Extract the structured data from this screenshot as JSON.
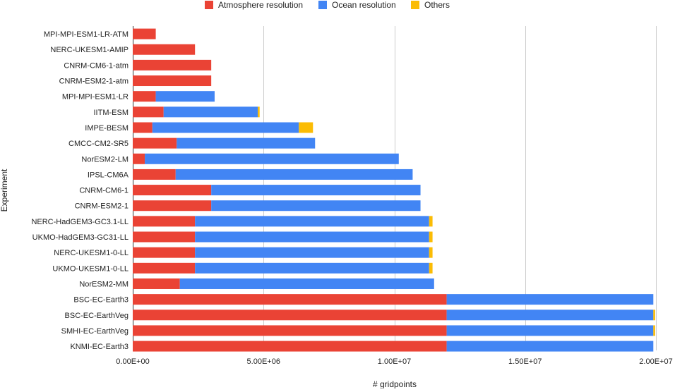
{
  "chart_data": {
    "type": "bar",
    "orientation": "horizontal",
    "stacked": true,
    "title": "",
    "xlabel": "# gridpoints",
    "ylabel": "Experiment",
    "xlim": [
      0,
      20000000
    ],
    "xticks": [
      {
        "value": 0,
        "label": "0.00E+00"
      },
      {
        "value": 5000000,
        "label": "5.00E+06"
      },
      {
        "value": 10000000,
        "label": "1.00E+07"
      },
      {
        "value": 15000000,
        "label": "1.50E+07"
      },
      {
        "value": 20000000,
        "label": "2.00E+07"
      }
    ],
    "grid": true,
    "legend_position": "top",
    "categories": [
      "MPI-MPI-ESM1-LR-ATM",
      "NERC-UKESM1-AMIP",
      "CNRM-CM6-1-atm",
      "CNRM-ESM2-1-atm",
      "MPI-MPI-ESM1-LR",
      "IITM-ESM",
      "IMPE-BESM",
      "CMCC-CM2-SR5",
      "NorESM2-LM",
      "IPSL-CM6A",
      "CNRM-CM6-1",
      "CNRM-ESM2-1",
      "NERC-HadGEM3-GC3.1-LL",
      "UKMO-HadGEM3-GC31-LL",
      "NERC-UKESM1-0-LL",
      "UKMO-UKESM1-0-LL",
      "NorESM2-MM",
      "BSC-EC-Earth3",
      "BSC-EC-EarthVeg",
      "SMHI-EC-EarthVeg",
      "KNMI-EC-Earth3"
    ],
    "series": [
      {
        "name": "Atmosphere resolution",
        "color": "#ea4335",
        "values": [
          880000,
          2380000,
          3000000,
          3000000,
          880000,
          1180000,
          750000,
          1680000,
          460000,
          1640000,
          3000000,
          3000000,
          2380000,
          2380000,
          2380000,
          2380000,
          1800000,
          12000000,
          12000000,
          12000000,
          12000000
        ]
      },
      {
        "name": "Ocean resolution",
        "color": "#4285f4",
        "values": [
          0,
          0,
          0,
          0,
          2250000,
          3600000,
          5600000,
          5290000,
          9710000,
          9060000,
          8000000,
          8000000,
          8950000,
          8950000,
          8950000,
          8950000,
          9720000,
          7900000,
          7900000,
          7900000,
          7900000
        ]
      },
      {
        "name": "Others",
        "color": "#fbbc04",
        "values": [
          0,
          0,
          0,
          0,
          0,
          70000,
          540000,
          0,
          0,
          0,
          0,
          0,
          130000,
          130000,
          130000,
          130000,
          0,
          0,
          70000,
          70000,
          0
        ]
      }
    ]
  }
}
